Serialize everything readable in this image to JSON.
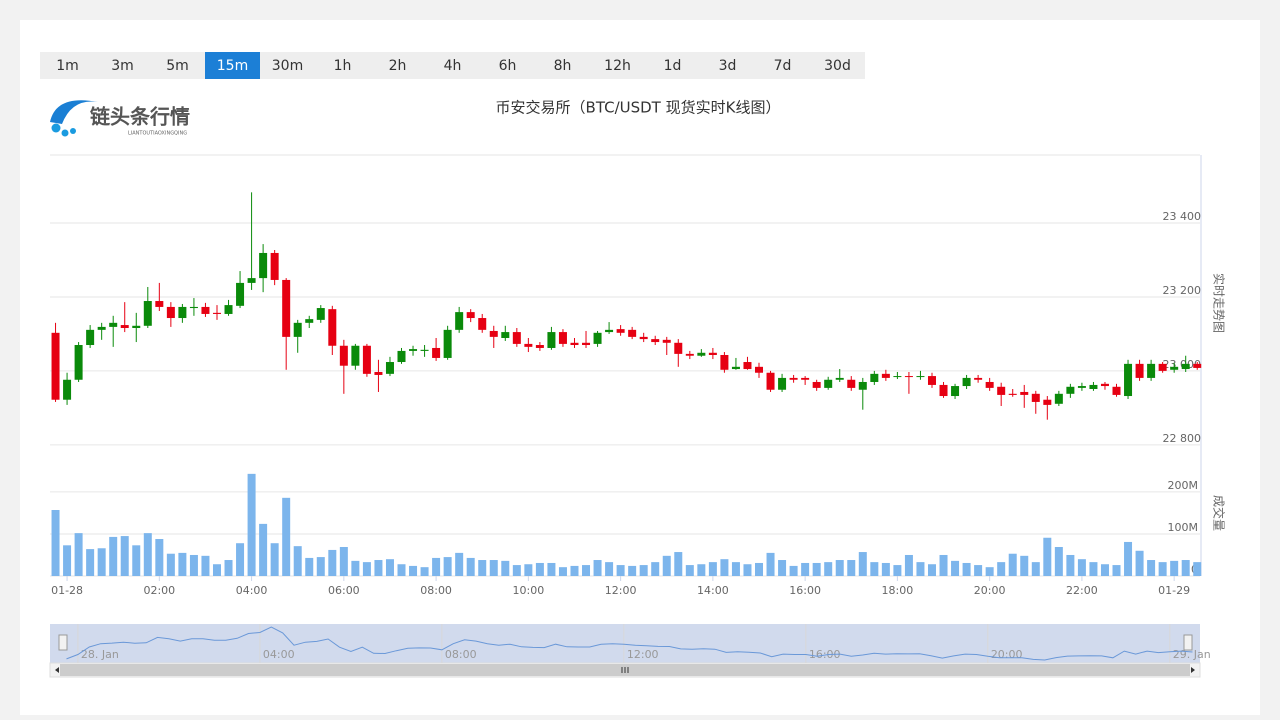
{
  "toolbar": {
    "buttons": [
      "1m",
      "3m",
      "5m",
      "15m",
      "30m",
      "1h",
      "2h",
      "4h",
      "6h",
      "8h",
      "12h",
      "1d",
      "3d",
      "7d",
      "30d"
    ],
    "active": "15m"
  },
  "logo": {
    "name": "链头条行情",
    "subtitle": "LIANTOUTIAOXINGQING"
  },
  "chart_data": {
    "type": "candlestick",
    "title": "币安交易所（BTC/USDT 现货实时K线图）",
    "y_axis_title": "实时走势图",
    "up_color": "#0a8a0a",
    "down_color": "#e60012",
    "grid": true,
    "xlim": [
      -0.37,
      24.56
    ],
    "xticks": [
      {
        "value": 0,
        "label": "01-28"
      },
      {
        "value": 2,
        "label": "02:00"
      },
      {
        "value": 4,
        "label": "04:00"
      },
      {
        "value": 6,
        "label": "06:00"
      },
      {
        "value": 8,
        "label": "08:00"
      },
      {
        "value": 10,
        "label": "10:00"
      },
      {
        "value": 12,
        "label": "12:00"
      },
      {
        "value": 14,
        "label": "14:00"
      },
      {
        "value": 16,
        "label": "16:00"
      },
      {
        "value": 18,
        "label": "18:00"
      },
      {
        "value": 20,
        "label": "20:00"
      },
      {
        "value": 22,
        "label": "22:00"
      },
      {
        "value": 24,
        "label": "01-29"
      }
    ],
    "ylim": [
      22786,
      23584
    ],
    "yticks": [
      {
        "value": 22800,
        "label": "22 800"
      },
      {
        "value": 23000,
        "label": "23 000"
      },
      {
        "value": 23200,
        "label": "23 200"
      },
      {
        "value": 23400,
        "label": "23 400"
      }
    ],
    "x": [
      -0.25,
      0,
      0.25,
      0.5,
      0.75,
      1,
      1.25,
      1.5,
      1.75,
      2,
      2.25,
      2.5,
      2.75,
      3,
      3.25,
      3.5,
      3.75,
      4,
      4.25,
      4.5,
      4.75,
      5,
      5.25,
      5.5,
      5.75,
      6,
      6.25,
      6.5,
      6.75,
      7,
      7.25,
      7.5,
      7.75,
      8,
      8.25,
      8.5,
      8.75,
      9,
      9.25,
      9.5,
      9.75,
      10,
      10.25,
      10.5,
      10.75,
      11,
      11.25,
      11.5,
      11.75,
      12,
      12.25,
      12.5,
      12.75,
      13,
      13.25,
      13.5,
      13.75,
      14,
      14.25,
      14.5,
      14.75,
      15,
      15.25,
      15.5,
      15.75,
      16,
      16.25,
      16.5,
      16.75,
      17,
      17.25,
      17.5,
      17.75,
      18,
      18.25,
      18.5,
      18.75,
      19,
      19.25,
      19.5,
      19.75,
      20,
      20.25,
      20.5,
      20.75,
      21,
      21.25,
      21.5,
      21.75,
      22,
      22.25,
      22.5,
      22.75,
      23,
      23.25,
      23.5,
      23.75,
      24,
      24.25,
      24.5
    ],
    "open": [
      23103,
      22922,
      22976,
      23070,
      23111,
      23119,
      23124,
      23116,
      23122,
      23189,
      23173,
      23143,
      23170,
      23173,
      23157,
      23154,
      23176,
      23238,
      23251,
      23319,
      23246,
      23092,
      23130,
      23138,
      23167,
      23068,
      23014,
      23068,
      22997,
      22992,
      23024,
      23054,
      23054,
      23062,
      23035,
      23111,
      23159,
      23143,
      23108,
      23089,
      23105,
      23073,
      23070,
      23062,
      23105,
      23076,
      23076,
      23073,
      23105,
      23113,
      23111,
      23092,
      23086,
      23084,
      23076,
      23046,
      23041,
      23049,
      23043,
      23005,
      23024,
      23011,
      22995,
      22949,
      22981,
      22981,
      22970,
      22954,
      22976,
      22976,
      22949,
      22970,
      22992,
      22984,
      22986,
      22984,
      22986,
      22962,
      22932,
      22959,
      22981,
      22970,
      22957,
      22938,
      22943,
      22938,
      22922,
      22911,
      22938,
      22954,
      22951,
      22965,
      22957,
      22932,
      23019,
      22981,
      23019,
      23003,
      23005,
      23019
    ],
    "high": [
      23130,
      22995,
      23078,
      23124,
      23130,
      23149,
      23186,
      23157,
      23227,
      23238,
      23186,
      23181,
      23197,
      23184,
      23178,
      23192,
      23270,
      23483,
      23343,
      23327,
      23251,
      23138,
      23149,
      23178,
      23176,
      23084,
      23073,
      23073,
      23030,
      23038,
      23062,
      23068,
      23070,
      23089,
      23122,
      23173,
      23167,
      23154,
      23122,
      23122,
      23116,
      23089,
      23078,
      23119,
      23113,
      23089,
      23108,
      23108,
      23132,
      23124,
      23119,
      23103,
      23095,
      23092,
      23086,
      23054,
      23059,
      23062,
      23051,
      23035,
      23038,
      23022,
      23000,
      22992,
      22989,
      22986,
      22976,
      22984,
      23005,
      22986,
      22981,
      23000,
      23003,
      22997,
      22997,
      23000,
      22995,
      22970,
      22965,
      22989,
      22989,
      22981,
      22968,
      22951,
      22962,
      22946,
      22932,
      22946,
      22965,
      22968,
      22970,
      22970,
      22965,
      23030,
      23030,
      23030,
      23024,
      23022,
      23041,
      23024
    ],
    "low": [
      22916,
      22908,
      22970,
      23062,
      23084,
      23065,
      23105,
      23078,
      23116,
      23162,
      23119,
      23130,
      23149,
      23146,
      23138,
      23149,
      23170,
      23219,
      23213,
      23232,
      23003,
      23049,
      23116,
      23130,
      23043,
      22938,
      23003,
      22984,
      22943,
      22986,
      23019,
      23041,
      23038,
      23027,
      23030,
      23103,
      23132,
      23103,
      23062,
      23081,
      23065,
      23051,
      23054,
      23057,
      23065,
      23062,
      23062,
      23065,
      23100,
      23095,
      23086,
      23078,
      23070,
      23043,
      23011,
      23032,
      23038,
      23032,
      22995,
      23003,
      23003,
      22981,
      22943,
      22943,
      22968,
      22962,
      22946,
      22949,
      22970,
      22946,
      22895,
      22962,
      22973,
      22978,
      22938,
      22976,
      22954,
      22927,
      22924,
      22951,
      22968,
      22946,
      22905,
      22930,
      22900,
      22884,
      22868,
      22905,
      22927,
      22946,
      22946,
      22949,
      22930,
      22924,
      22973,
      22973,
      22995,
      22995,
      22997,
      23003
    ],
    "close": [
      22922,
      22976,
      23070,
      23111,
      23119,
      23130,
      23116,
      23122,
      23189,
      23173,
      23143,
      23173,
      23173,
      23154,
      23154,
      23178,
      23238,
      23251,
      23319,
      23246,
      23092,
      23130,
      23140,
      23170,
      23068,
      23014,
      23068,
      22992,
      22989,
      23024,
      23054,
      23059,
      23057,
      23035,
      23111,
      23159,
      23143,
      23111,
      23092,
      23105,
      23073,
      23065,
      23062,
      23105,
      23073,
      23070,
      23070,
      23103,
      23111,
      23103,
      23092,
      23086,
      23078,
      23076,
      23046,
      23041,
      23049,
      23043,
      23003,
      23011,
      23005,
      22995,
      22949,
      22981,
      22976,
      22976,
      22954,
      22976,
      22981,
      22954,
      22970,
      22992,
      22981,
      22986,
      22984,
      22986,
      22962,
      22932,
      22959,
      22981,
      22976,
      22954,
      22935,
      22935,
      22935,
      22916,
      22908,
      22938,
      22957,
      22959,
      22962,
      22959,
      22935,
      23019,
      22981,
      23019,
      23000,
      23011,
      23019,
      23008
    ],
    "volume": {
      "axis_title": "成交量",
      "color": "#7cb5ec",
      "ylim": [
        0,
        295
      ],
      "yticks": [
        0,
        {
          "value": 100,
          "label": "100M"
        },
        {
          "value": 200,
          "label": "200M"
        }
      ],
      "values": [
        157,
        73,
        102,
        64,
        66,
        93,
        95,
        73,
        102,
        88,
        53,
        55,
        50,
        48,
        28,
        38,
        78,
        243,
        124,
        78,
        186,
        71,
        43,
        45,
        62,
        69,
        36,
        33,
        38,
        40,
        28,
        24,
        21,
        43,
        45,
        55,
        43,
        38,
        38,
        36,
        26,
        28,
        31,
        31,
        21,
        24,
        26,
        38,
        33,
        26,
        24,
        26,
        33,
        48,
        57,
        26,
        28,
        33,
        40,
        33,
        28,
        31,
        55,
        38,
        24,
        31,
        31,
        33,
        38,
        38,
        57,
        33,
        31,
        26,
        50,
        33,
        28,
        50,
        36,
        31,
        26,
        21,
        33,
        53,
        48,
        33,
        91,
        69,
        50,
        40,
        33,
        28,
        26,
        81,
        60,
        38,
        33,
        36,
        38,
        33
      ]
    },
    "navigator": {
      "color": "#6a98d8",
      "xlim": [
        -0.35,
        24.4
      ],
      "xticks": [
        {
          "value": 0,
          "label": "28. Jan"
        },
        {
          "value": 4,
          "label": "04:00"
        },
        {
          "value": 8,
          "label": "08:00"
        },
        {
          "value": 12,
          "label": "12:00"
        },
        {
          "value": 16,
          "label": "16:00"
        },
        {
          "value": 20,
          "label": "20:00"
        },
        {
          "value": 24,
          "label": "29. Jan"
        }
      ]
    }
  }
}
